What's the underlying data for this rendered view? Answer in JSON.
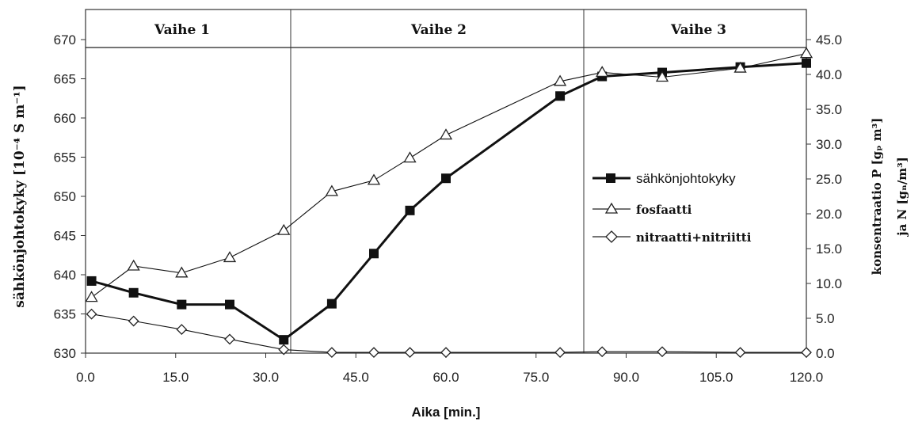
{
  "chart_data": {
    "type": "line",
    "xlabel": "Aika [min.]",
    "ylabel_left": "sähkönjohtokyky [10⁻⁴ S m⁻¹]",
    "ylabel_right_line1": "konsentraatio P [gₚ m³]",
    "ylabel_right_line2": "ja N [gₙ/m³]",
    "xlim": [
      0,
      120
    ],
    "ylim_left": [
      630,
      670
    ],
    "ylim_right": [
      0,
      45
    ],
    "x_ticks": [
      "0.0",
      "15.0",
      "30.0",
      "45.0",
      "60.0",
      "75.0",
      "90.0",
      "105.0",
      "120.0"
    ],
    "y_left_ticks": [
      "630",
      "635",
      "640",
      "645",
      "650",
      "655",
      "660",
      "665",
      "670"
    ],
    "y_right_ticks": [
      "0.0",
      "5.0",
      "10.0",
      "15.0",
      "20.0",
      "25.0",
      "30.0",
      "35.0",
      "40.0",
      "45.0"
    ],
    "phases": [
      {
        "label": "Vaihe 1",
        "start": 0,
        "end": 34
      },
      {
        "label": "Vaihe 2",
        "start": 34,
        "end": 83
      },
      {
        "label": "Vaihe 3",
        "start": 83,
        "end": 120
      }
    ],
    "series": [
      {
        "name": "sähkönjohtokyky",
        "axis": "left",
        "marker": "square",
        "x": [
          1,
          8,
          16,
          24,
          33,
          41,
          48,
          54,
          60,
          79,
          86,
          96,
          109,
          120
        ],
        "y": [
          639.2,
          637.7,
          636.2,
          636.2,
          631.7,
          636.3,
          642.7,
          648.2,
          652.3,
          662.8,
          665.3,
          665.8,
          666.5,
          667.0
        ]
      },
      {
        "name": "fosfaatti",
        "axis": "right",
        "marker": "triangle",
        "x": [
          1,
          8,
          16,
          24,
          33,
          41,
          48,
          54,
          60,
          79,
          86,
          96,
          109,
          120
        ],
        "y": [
          8.0,
          12.5,
          11.5,
          13.7,
          17.6,
          23.2,
          24.8,
          28.0,
          31.3,
          39.0,
          40.3,
          39.6,
          40.9,
          43.0
        ]
      },
      {
        "name": "nitraatti+nitriitti",
        "axis": "right",
        "marker": "diamond",
        "x": [
          1,
          8,
          16,
          24,
          33,
          41,
          48,
          54,
          60,
          79,
          86,
          96,
          109,
          120
        ],
        "y": [
          5.6,
          4.6,
          3.4,
          2.0,
          0.5,
          0.1,
          0.1,
          0.1,
          0.1,
          0.1,
          0.2,
          0.2,
          0.1,
          0.1
        ]
      }
    ],
    "grid": false,
    "legend_position": "right-middle"
  }
}
